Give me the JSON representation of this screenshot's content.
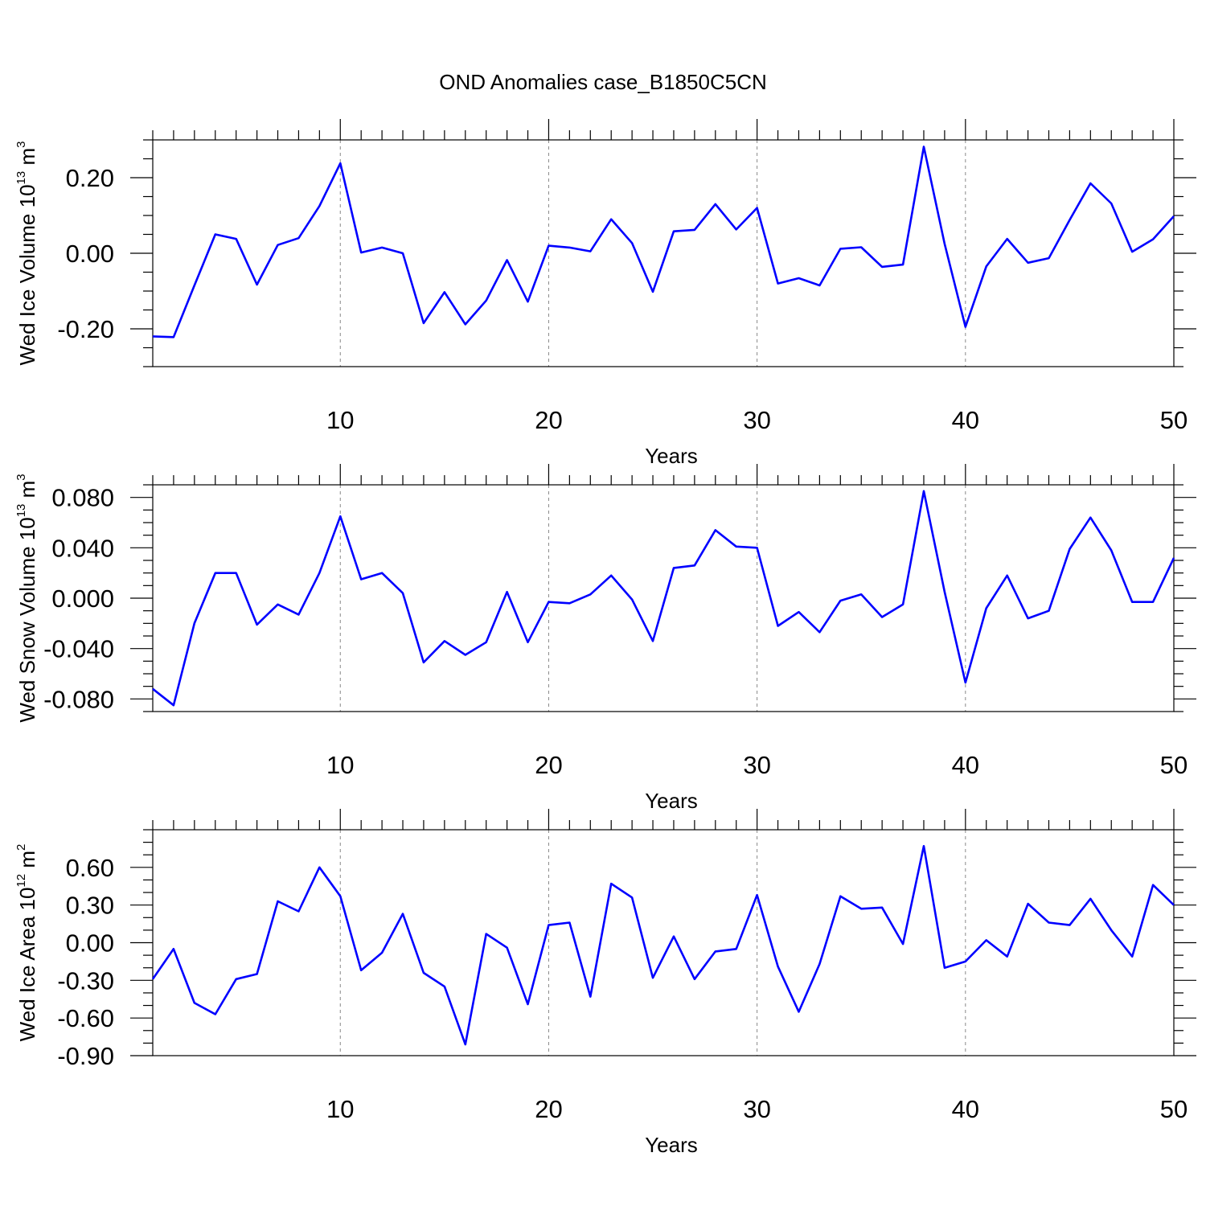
{
  "figure": {
    "title": "OND Anomalies case_B1850C5CN"
  },
  "colors": {
    "series": "#0000ff",
    "axes": "#000000",
    "grid": "#888888"
  },
  "chart_data": [
    {
      "type": "line",
      "xlabel": "Years",
      "ylabel": {
        "text": "Wed Ice Volume 10",
        "exp": "13",
        "unit": " m",
        "unit_exp": "3"
      },
      "xlim": [
        1,
        50
      ],
      "ylim": [
        -0.3,
        0.3
      ],
      "xticks": [
        10,
        20,
        30,
        40,
        50
      ],
      "xtick_labels": [
        "10",
        "20",
        "30",
        "40",
        "50"
      ],
      "yticks": [
        -0.2,
        0.0,
        0.2
      ],
      "ytick_labels": [
        "-0.20",
        "0.00",
        "0.20"
      ],
      "y_minor_step": 0.05,
      "grid": "vertical dashed at major x ticks",
      "x": [
        1,
        2,
        3,
        4,
        5,
        6,
        7,
        8,
        9,
        10,
        11,
        12,
        13,
        14,
        15,
        16,
        17,
        18,
        19,
        20,
        21,
        22,
        23,
        24,
        25,
        26,
        27,
        28,
        29,
        30,
        31,
        32,
        33,
        34,
        35,
        36,
        37,
        38,
        39,
        40,
        41,
        42,
        43,
        44,
        45,
        46,
        47,
        48,
        49,
        50
      ],
      "values": [
        -0.22,
        -0.222,
        -0.085,
        0.05,
        0.038,
        -0.083,
        0.022,
        0.04,
        0.125,
        0.238,
        0.002,
        0.015,
        0.0,
        -0.185,
        -0.103,
        -0.188,
        -0.125,
        -0.018,
        -0.128,
        0.02,
        0.015,
        0.005,
        0.09,
        0.027,
        -0.102,
        0.058,
        0.062,
        0.13,
        0.063,
        0.12,
        -0.08,
        -0.066,
        -0.085,
        0.012,
        0.016,
        -0.036,
        -0.03,
        0.282,
        0.025,
        -0.195,
        -0.035,
        0.038,
        -0.025,
        -0.013,
        0.088,
        0.185,
        0.132,
        0.004,
        0.037,
        0.098
      ]
    },
    {
      "type": "line",
      "xlabel": "Years",
      "ylabel": {
        "text": "Wed Snow Volume 10",
        "exp": "13",
        "unit": " m",
        "unit_exp": "3"
      },
      "xlim": [
        1,
        50
      ],
      "ylim": [
        -0.09,
        0.09
      ],
      "xticks": [
        10,
        20,
        30,
        40,
        50
      ],
      "xtick_labels": [
        "10",
        "20",
        "30",
        "40",
        "50"
      ],
      "yticks": [
        -0.08,
        -0.04,
        0.0,
        0.04,
        0.08
      ],
      "ytick_labels": [
        "-0.080",
        "-0.040",
        "0.000",
        "0.040",
        "0.080"
      ],
      "y_minor_step": 0.01,
      "grid": "vertical dashed at major x ticks",
      "x": [
        1,
        2,
        3,
        4,
        5,
        6,
        7,
        8,
        9,
        10,
        11,
        12,
        13,
        14,
        15,
        16,
        17,
        18,
        19,
        20,
        21,
        22,
        23,
        24,
        25,
        26,
        27,
        28,
        29,
        30,
        31,
        32,
        33,
        34,
        35,
        36,
        37,
        38,
        39,
        40,
        41,
        42,
        43,
        44,
        45,
        46,
        47,
        48,
        49,
        50
      ],
      "values": [
        -0.072,
        -0.085,
        -0.02,
        0.02,
        0.02,
        -0.021,
        -0.005,
        -0.013,
        0.02,
        0.065,
        0.015,
        0.02,
        0.004,
        -0.051,
        -0.034,
        -0.045,
        -0.035,
        0.005,
        -0.035,
        -0.003,
        -0.004,
        0.003,
        0.018,
        -0.001,
        -0.034,
        0.024,
        0.026,
        0.054,
        0.041,
        0.04,
        -0.022,
        -0.011,
        -0.027,
        -0.002,
        0.003,
        -0.015,
        -0.005,
        0.085,
        0.005,
        -0.067,
        -0.008,
        0.018,
        -0.016,
        -0.01,
        0.039,
        0.064,
        0.038,
        -0.003,
        -0.003,
        0.032
      ]
    },
    {
      "type": "line",
      "xlabel": "Years",
      "ylabel": {
        "text": "Wed Ice Area 10",
        "exp": "12",
        "unit": " m",
        "unit_exp": "2"
      },
      "xlim": [
        1,
        50
      ],
      "ylim": [
        -0.9,
        0.9
      ],
      "xticks": [
        10,
        20,
        30,
        40,
        50
      ],
      "xtick_labels": [
        "10",
        "20",
        "30",
        "40",
        "50"
      ],
      "yticks": [
        -0.9,
        -0.6,
        -0.3,
        0.0,
        0.3,
        0.6
      ],
      "ytick_labels": [
        "-0.90",
        "-0.60",
        "-0.30",
        "0.00",
        "0.30",
        "0.60"
      ],
      "y_minor_step": 0.1,
      "grid": "vertical dashed at major x ticks",
      "x": [
        1,
        2,
        3,
        4,
        5,
        6,
        7,
        8,
        9,
        10,
        11,
        12,
        13,
        14,
        15,
        16,
        17,
        18,
        19,
        20,
        21,
        22,
        23,
        24,
        25,
        26,
        27,
        28,
        29,
        30,
        31,
        32,
        33,
        34,
        35,
        36,
        37,
        38,
        39,
        40,
        41,
        42,
        43,
        44,
        45,
        46,
        47,
        48,
        49,
        50
      ],
      "values": [
        -0.29,
        -0.05,
        -0.48,
        -0.57,
        -0.29,
        -0.25,
        0.33,
        0.25,
        0.6,
        0.37,
        -0.22,
        -0.08,
        0.23,
        -0.24,
        -0.35,
        -0.81,
        0.07,
        -0.04,
        -0.49,
        0.14,
        0.16,
        -0.43,
        0.47,
        0.36,
        -0.28,
        0.05,
        -0.29,
        -0.07,
        -0.05,
        0.38,
        -0.19,
        -0.55,
        -0.17,
        0.37,
        0.27,
        0.28,
        -0.01,
        0.77,
        -0.2,
        -0.15,
        0.02,
        -0.11,
        0.31,
        0.16,
        0.14,
        0.35,
        0.1,
        -0.11,
        0.46,
        0.3
      ]
    }
  ]
}
